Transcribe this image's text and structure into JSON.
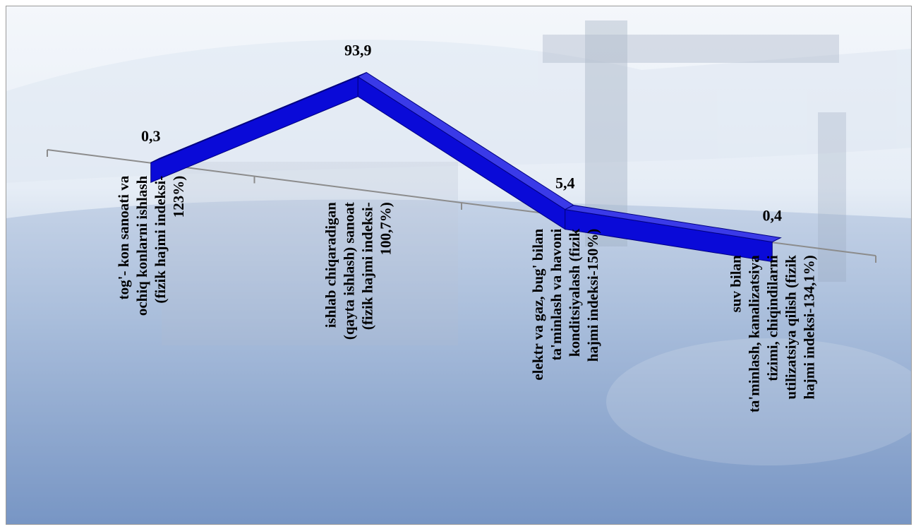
{
  "chart_data": {
    "type": "line",
    "title": "",
    "xlabel": "",
    "ylabel": "",
    "categories": [
      [
        "tog'- kon sanoati va",
        "ochiq konlarni ishlash",
        "(fizik hajmi indeksi-",
        "123%)"
      ],
      [
        "ishlab chiqaradigan",
        "(qayta ishlash) sanoat",
        "(fizik hajmi indeksi-",
        "100,7%)"
      ],
      [
        "elektr va gaz, bug' bilan",
        "ta'minlash va havoni",
        "konditsiyalash (fizik",
        "hajmi indeksi-150%)"
      ],
      [
        "suv bilan",
        "ta'minlash, kanalizatsiya",
        "tizimi, chiqindilarni",
        "utilizatsiya qilish (fizik",
        "hajmi indeksi-134,1%)"
      ]
    ],
    "series": [
      {
        "values": [
          0.3,
          93.9,
          5.4,
          0.4
        ]
      }
    ],
    "data_labels": [
      "0,3",
      "93,9",
      "5,4",
      "0,4"
    ],
    "ylim": [
      0,
      100
    ],
    "grid": false,
    "legend": "none",
    "style": "3d-ribbon",
    "colors": {
      "ribbon": "#0a0ad8",
      "ribbon_top": "#3a3ae8",
      "axis": "#8c8c8c"
    }
  }
}
